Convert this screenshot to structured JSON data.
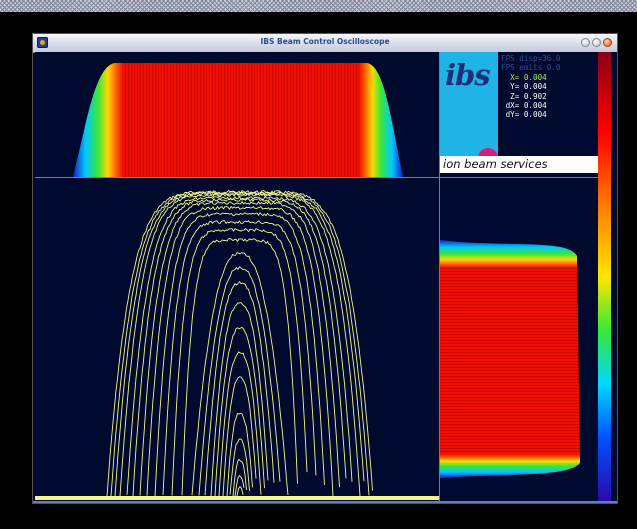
{
  "window": {
    "title": "IBS Beam Control Oscilloscope"
  },
  "logo": {
    "text": "ibs",
    "tagline": "ion beam services"
  },
  "readouts": [
    {
      "text": "FPS disp=36.0",
      "color": "#2c4f95"
    },
    {
      "text": "FPS emits 0.0",
      "color": "#2c4f95"
    },
    {
      "text": "  X= 0.004",
      "color": "#9cf05a"
    },
    {
      "text": "  Y= 0.004",
      "color": "#ffffff"
    },
    {
      "text": "  Z= 0.902",
      "color": "#ffffff"
    },
    {
      "text": " dX= 0.004",
      "color": "#ffffff"
    },
    {
      "text": " dY= 0.004",
      "color": "#ffffff"
    }
  ],
  "colors": {
    "background": "#000a2e",
    "trace": "#f5f58a",
    "divider": "#4f84c9",
    "accent": "#1fb3e6"
  },
  "icons": [
    "app-icon",
    "minimize-button",
    "maximize-button",
    "close-button"
  ]
}
